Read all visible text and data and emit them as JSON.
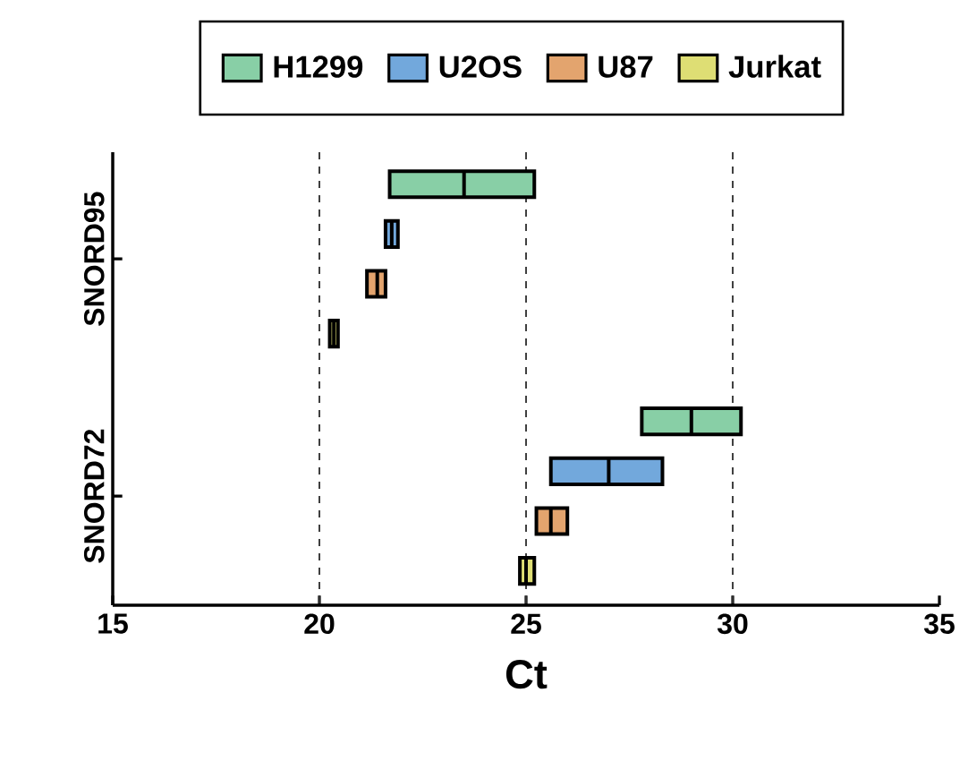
{
  "chart_data": {
    "type": "box",
    "orientation": "horizontal",
    "categories": [
      "SNORD95",
      "SNORD72"
    ],
    "xlabel": "Ct",
    "xlim": [
      15,
      35
    ],
    "xticks": [
      15,
      20,
      25,
      30,
      35
    ],
    "legend": "top",
    "ref_lines": [
      {
        "axis": "x",
        "value": 20,
        "line_style": "dashed"
      },
      {
        "axis": "x",
        "value": 25,
        "line_style": "dashed"
      },
      {
        "axis": "x",
        "value": 30,
        "line_style": "dashed"
      }
    ],
    "series": [
      {
        "name": "H1299",
        "color": "#88cfa6",
        "boxes": [
          {
            "low": 21.7,
            "q1": 21.7,
            "median": 23.5,
            "q3": 25.2,
            "high": 25.2
          },
          {
            "low": 27.8,
            "q1": 27.8,
            "median": 29.0,
            "q3": 30.2,
            "high": 30.2
          }
        ]
      },
      {
        "name": "U2OS",
        "color": "#72a8dc",
        "boxes": [
          {
            "low": 21.6,
            "q1": 21.6,
            "median": 21.75,
            "q3": 21.9,
            "high": 21.9
          },
          {
            "low": 25.6,
            "q1": 25.6,
            "median": 27.0,
            "q3": 28.3,
            "high": 28.3
          }
        ]
      },
      {
        "name": "U87",
        "color": "#e3a46e",
        "boxes": [
          {
            "low": 21.15,
            "q1": 21.15,
            "median": 21.4,
            "q3": 21.6,
            "high": 21.6
          },
          {
            "low": 25.25,
            "q1": 25.25,
            "median": 25.6,
            "q3": 26.0,
            "high": 26.0
          }
        ]
      },
      {
        "name": "Jurkat",
        "color": "#dede74",
        "boxes": [
          {
            "low": 20.25,
            "q1": 20.25,
            "median": 20.35,
            "q3": 20.45,
            "high": 20.45
          },
          {
            "low": 24.85,
            "q1": 24.85,
            "median": 25.0,
            "q3": 25.2,
            "high": 25.2
          }
        ]
      }
    ]
  }
}
